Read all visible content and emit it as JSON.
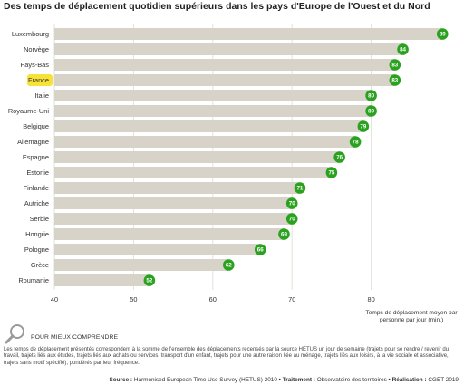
{
  "title": "Des temps de déplacement quotidien supérieurs dans les pays d'Europe de l'Ouest et du Nord",
  "chart_data": {
    "type": "bar",
    "orientation": "horizontal",
    "categories": [
      "Luxembourg",
      "Norvège",
      "Pays-Bas",
      "France",
      "Italie",
      "Royaume-Uni",
      "Belgique",
      "Allemagne",
      "Espagne",
      "Estonie",
      "Finlande",
      "Autriche",
      "Serbie",
      "Hongrie",
      "Pologne",
      "Grèce",
      "Roumanie"
    ],
    "values": [
      89,
      84,
      83,
      83,
      80,
      80,
      79,
      78,
      76,
      75,
      71,
      70,
      70,
      69,
      66,
      62,
      52
    ],
    "highlighted": "France",
    "xlim": [
      40,
      90
    ],
    "xticks": [
      "40",
      "50",
      "60",
      "70",
      "80"
    ],
    "xlabel": "Temps de déplacement moyen par personne par jour (min.)",
    "grid": true,
    "colors": {
      "bar": "#d7d3c9",
      "marker": "#2aa21f",
      "highlight": "#f7e238",
      "grid": "#e3e0d8"
    }
  },
  "understand": {
    "icon": "magnifier-icon",
    "title": "POUR MIEUX COMPRENDRE",
    "text": "Les temps de déplacement présentés correspondent à la somme de l'ensemble des déplacements recensés par la source HETUS un jour de semaine (trajets pour se rendre / revenir du travail, trajets liés aux études, trajets liés aux achats ou services, transport d'un enfant, trajets pour une autre raison liée au ménage, trajets liés aux loisirs, à la vie sociale et associative, trajets sans motif spécifié), pondérés par leur fréquence."
  },
  "source": {
    "source_label": "Source :",
    "source_text": "Harmonised European Time Use Survey (HETUS) 2010",
    "treatment_label": "Traitement :",
    "treatment_text": "Observatoire des territoires",
    "realisation_label": "Réalisation :",
    "realisation_text": "CGET 2019"
  }
}
